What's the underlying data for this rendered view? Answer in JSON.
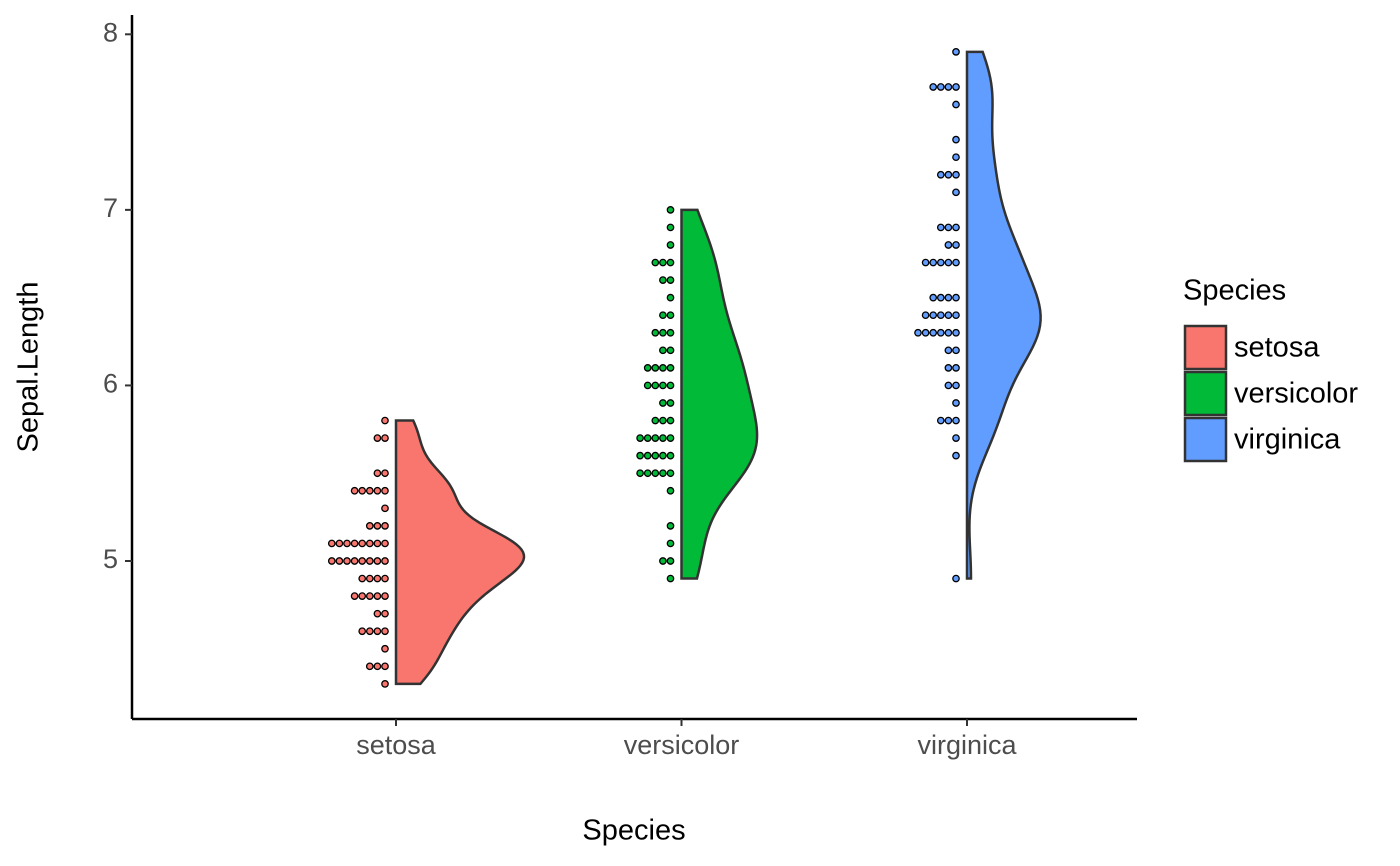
{
  "chart_data": {
    "type": "violin",
    "x_label": "Species",
    "y_label": "Sepal.Length",
    "legend_title": "Species",
    "categories": [
      "setosa",
      "versicolor",
      "virginica"
    ],
    "series": [
      {
        "name": "setosa",
        "color": "#f8766d",
        "values": [
          5.1,
          4.9,
          4.7,
          4.6,
          5.0,
          5.4,
          4.6,
          5.0,
          4.4,
          4.9,
          5.4,
          4.8,
          4.8,
          4.3,
          5.8,
          5.7,
          5.4,
          5.1,
          5.7,
          5.1,
          5.4,
          5.1,
          4.6,
          5.1,
          4.8,
          5.0,
          5.0,
          5.2,
          5.2,
          4.7,
          4.8,
          5.4,
          5.2,
          5.5,
          4.9,
          5.0,
          5.5,
          4.9,
          4.4,
          5.1,
          5.0,
          4.5,
          4.4,
          5.0,
          5.1,
          4.8,
          5.1,
          4.6,
          5.3,
          5.0
        ]
      },
      {
        "name": "versicolor",
        "color": "#00ba38",
        "values": [
          7.0,
          6.4,
          6.9,
          5.5,
          6.5,
          5.7,
          6.3,
          4.9,
          6.6,
          5.2,
          5.0,
          5.9,
          6.0,
          6.1,
          5.6,
          6.7,
          5.6,
          5.8,
          6.2,
          5.6,
          5.9,
          6.1,
          6.3,
          6.1,
          6.4,
          6.6,
          6.8,
          6.7,
          6.0,
          5.7,
          5.5,
          5.5,
          5.8,
          6.0,
          5.4,
          6.0,
          6.7,
          6.3,
          5.6,
          5.5,
          5.5,
          6.1,
          5.8,
          5.0,
          5.6,
          5.7,
          5.7,
          6.2,
          5.1,
          5.7
        ]
      },
      {
        "name": "virginica",
        "color": "#619cff",
        "values": [
          6.3,
          5.8,
          7.1,
          6.3,
          6.5,
          7.6,
          4.9,
          7.3,
          6.7,
          7.2,
          6.5,
          6.4,
          6.8,
          5.7,
          5.8,
          6.4,
          6.5,
          7.7,
          7.7,
          6.0,
          6.9,
          5.6,
          7.7,
          6.3,
          6.7,
          7.2,
          6.2,
          6.1,
          6.4,
          7.2,
          7.4,
          7.9,
          6.4,
          6.3,
          6.1,
          7.7,
          6.3,
          6.4,
          6.0,
          6.9,
          6.7,
          6.9,
          5.8,
          6.8,
          6.7,
          6.7,
          6.3,
          6.5,
          6.2,
          5.9
        ]
      }
    ],
    "ylim": [
      4.1,
      8.11
    ],
    "yticks": [
      5,
      6,
      7,
      8
    ],
    "grid": false,
    "legend": "right"
  }
}
